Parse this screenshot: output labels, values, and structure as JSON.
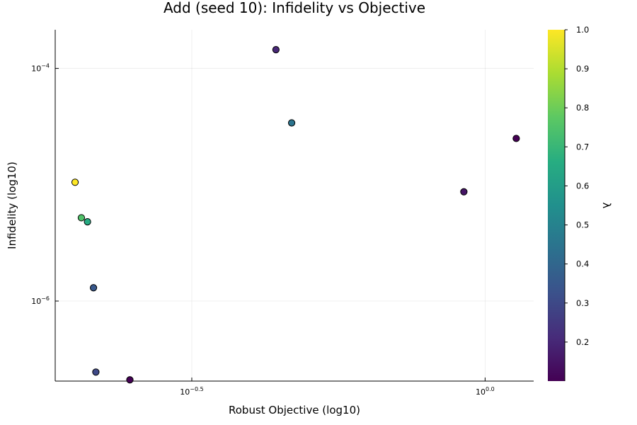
{
  "chart_data": {
    "type": "scatter",
    "title": "Add (seed 10): Infidelity vs Objective",
    "xlabel": "Robust Objective (log10)",
    "ylabel": "Infidelity (log10)",
    "xscale": "log10",
    "yscale": "log10",
    "xlim": [
      0.185,
      1.21
    ],
    "ylim": [
      2.05e-07,
      0.000215
    ],
    "xticks": [
      {
        "value": 0.31623,
        "base": "10",
        "exp": "−0.5"
      },
      {
        "value": 1.0,
        "base": "10",
        "exp": "0.0"
      }
    ],
    "yticks": [
      {
        "value": 1e-06,
        "base": "10",
        "exp": "−6"
      },
      {
        "value": 0.0001,
        "base": "10",
        "exp": "−4"
      }
    ],
    "grid": true,
    "legend": "none",
    "colorbar": {
      "label": "λ",
      "colormap": "viridis",
      "range": [
        0.1,
        1.0
      ],
      "ticks": [
        "0.2",
        "0.3",
        "0.4",
        "0.5",
        "0.6",
        "0.7",
        "0.8",
        "0.9",
        "1.0"
      ]
    },
    "points": [
      {
        "x": 0.2,
        "y": 1.05e-05,
        "lambda": 1.0
      },
      {
        "x": 0.205,
        "y": 5.2e-06,
        "lambda": 0.75
      },
      {
        "x": 0.21,
        "y": 4.8e-06,
        "lambda": 0.65
      },
      {
        "x": 0.215,
        "y": 1.3e-06,
        "lambda": 0.35
      },
      {
        "x": 0.217,
        "y": 2.45e-07,
        "lambda": 0.3
      },
      {
        "x": 0.248,
        "y": 2.1e-07,
        "lambda": 0.1
      },
      {
        "x": 0.44,
        "y": 0.000145,
        "lambda": 0.2
      },
      {
        "x": 0.468,
        "y": 3.4e-05,
        "lambda": 0.45
      },
      {
        "x": 0.92,
        "y": 8.7e-06,
        "lambda": 0.15
      },
      {
        "x": 1.13,
        "y": 2.5e-05,
        "lambda": 0.1
      }
    ]
  }
}
